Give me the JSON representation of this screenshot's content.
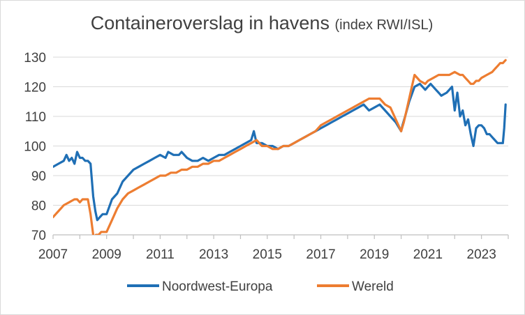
{
  "chart_data": {
    "type": "line",
    "title": "Containeroverslag in havens",
    "subtitle": "(index RWI/ISL)",
    "xlabel": "",
    "ylabel": "",
    "xlim": [
      2007,
      2024
    ],
    "ylim": [
      70,
      130
    ],
    "grid": true,
    "legend_position": "bottom",
    "x_ticks": [
      "2007",
      "2009",
      "2011",
      "2013",
      "2015",
      "2017",
      "2019",
      "2021",
      "2023"
    ],
    "y_ticks": [
      "70",
      "80",
      "90",
      "100",
      "110",
      "120",
      "130"
    ],
    "series": [
      {
        "name": "Noordwest-Europa",
        "color": "#1f6fb5",
        "x": [
          2007.0,
          2007.2,
          2007.4,
          2007.5,
          2007.6,
          2007.7,
          2007.8,
          2007.9,
          2008.0,
          2008.1,
          2008.2,
          2008.3,
          2008.4,
          2008.5,
          2008.58,
          2008.65,
          2008.75,
          2008.85,
          2009.0,
          2009.2,
          2009.4,
          2009.6,
          2009.8,
          2010.0,
          2010.2,
          2010.4,
          2010.6,
          2010.8,
          2011.0,
          2011.2,
          2011.3,
          2011.5,
          2011.7,
          2011.8,
          2012.0,
          2012.2,
          2012.4,
          2012.6,
          2012.8,
          2013.0,
          2013.2,
          2013.4,
          2013.6,
          2013.8,
          2014.0,
          2014.2,
          2014.4,
          2014.5,
          2014.6,
          2014.8,
          2015.0,
          2015.2,
          2015.4,
          2015.6,
          2015.8,
          2016.0,
          2016.2,
          2016.4,
          2016.6,
          2016.8,
          2017.0,
          2017.2,
          2017.4,
          2017.6,
          2017.8,
          2018.0,
          2018.2,
          2018.4,
          2018.6,
          2018.8,
          2019.0,
          2019.2,
          2019.4,
          2019.6,
          2019.8,
          2020.0,
          2020.05,
          2020.15,
          2020.3,
          2020.5,
          2020.7,
          2020.9,
          2021.0,
          2021.1,
          2021.3,
          2021.4,
          2021.5,
          2021.7,
          2021.9,
          2022.0,
          2022.1,
          2022.2,
          2022.3,
          2022.4,
          2022.5,
          2022.6,
          2022.7,
          2022.8,
          2022.9,
          2023.0,
          2023.1,
          2023.2,
          2023.3,
          2023.4,
          2023.5,
          2023.6,
          2023.7,
          2023.8,
          2023.85,
          2023.9
        ],
        "values": [
          93,
          94,
          95,
          97,
          95,
          96,
          94,
          98,
          96,
          96,
          95,
          95,
          94,
          83,
          78,
          75,
          76,
          77,
          77,
          82,
          84,
          88,
          90,
          92,
          93,
          94,
          95,
          96,
          97,
          96,
          98,
          97,
          97,
          98,
          96,
          95,
          95,
          96,
          95,
          96,
          97,
          97,
          98,
          99,
          100,
          101,
          102,
          105,
          101,
          101,
          100,
          100,
          99,
          100,
          100,
          101,
          102,
          103,
          104,
          105,
          106,
          107,
          108,
          109,
          110,
          111,
          112,
          113,
          114,
          112,
          113,
          114,
          112,
          110,
          108,
          105,
          107,
          110,
          115,
          120,
          121,
          119,
          120,
          121,
          119,
          118,
          117,
          118,
          120,
          112,
          118,
          110,
          112,
          107,
          109,
          104,
          100,
          106,
          107,
          107,
          106,
          104,
          104,
          103,
          102,
          101,
          101,
          101,
          106,
          114
        ]
      },
      {
        "name": "Wereld",
        "color": "#ed7d31",
        "x": [
          2007.0,
          2007.1,
          2007.2,
          2007.3,
          2007.4,
          2007.5,
          2007.6,
          2007.7,
          2007.8,
          2007.9,
          2008.0,
          2008.1,
          2008.2,
          2008.3,
          2008.4,
          2008.5,
          2008.55,
          2008.6,
          2008.7,
          2008.8,
          2009.0,
          2009.2,
          2009.4,
          2009.6,
          2009.8,
          2010.0,
          2010.2,
          2010.4,
          2010.6,
          2010.8,
          2011.0,
          2011.2,
          2011.4,
          2011.6,
          2011.8,
          2012.0,
          2012.2,
          2012.4,
          2012.6,
          2012.8,
          2013.0,
          2013.2,
          2013.4,
          2013.6,
          2013.8,
          2014.0,
          2014.2,
          2014.4,
          2014.6,
          2014.8,
          2015.0,
          2015.2,
          2015.4,
          2015.6,
          2015.8,
          2016.0,
          2016.2,
          2016.4,
          2016.6,
          2016.8,
          2017.0,
          2017.2,
          2017.4,
          2017.6,
          2017.8,
          2018.0,
          2018.2,
          2018.4,
          2018.6,
          2018.8,
          2019.0,
          2019.2,
          2019.4,
          2019.6,
          2019.8,
          2020.0,
          2020.1,
          2020.2,
          2020.35,
          2020.5,
          2020.7,
          2020.9,
          2021.0,
          2021.2,
          2021.4,
          2021.6,
          2021.8,
          2022.0,
          2022.2,
          2022.3,
          2022.4,
          2022.5,
          2022.6,
          2022.7,
          2022.8,
          2022.9,
          2023.0,
          2023.2,
          2023.4,
          2023.5,
          2023.6,
          2023.7,
          2023.8,
          2023.9
        ],
        "values": [
          76,
          77,
          78,
          79,
          80,
          80.5,
          81,
          81.5,
          82,
          82,
          81,
          82,
          82,
          82,
          77,
          70,
          69,
          70,
          70,
          71,
          71,
          75,
          79,
          82,
          84,
          85,
          86,
          87,
          88,
          89,
          90,
          90,
          91,
          91,
          92,
          92,
          93,
          93,
          94,
          94,
          95,
          95,
          96,
          97,
          98,
          99,
          100,
          101,
          102,
          100,
          100,
          99,
          99,
          100,
          100,
          101,
          102,
          103,
          104,
          105,
          107,
          108,
          109,
          110,
          111,
          112,
          113,
          114,
          115,
          116,
          116,
          116,
          114,
          113,
          109,
          105,
          108,
          112,
          118,
          124,
          122,
          121,
          122,
          123,
          124,
          124,
          124,
          125,
          124,
          124,
          123,
          122,
          121,
          121,
          122,
          122,
          123,
          124,
          125,
          126,
          127,
          128,
          128,
          129
        ]
      }
    ]
  }
}
